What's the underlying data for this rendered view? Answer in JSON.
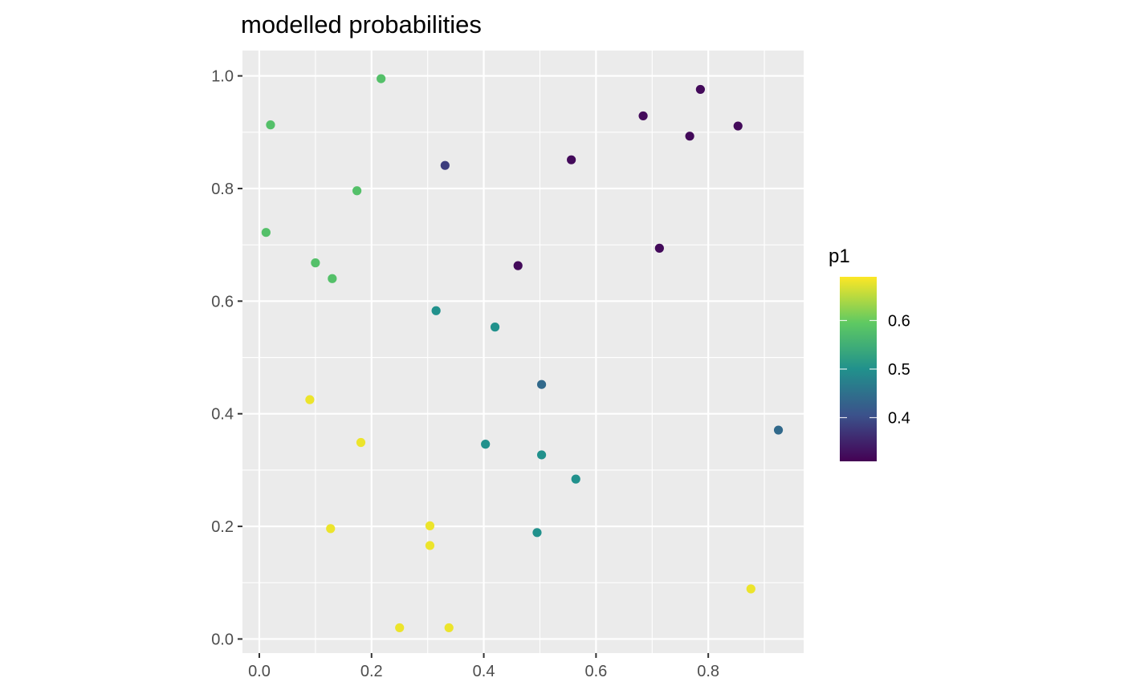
{
  "chart_data": {
    "type": "scatter",
    "title": "modelled probabilities",
    "xlabel": "",
    "ylabel": "",
    "xlim": [
      -0.03,
      0.97
    ],
    "ylim": [
      -0.025,
      1.045
    ],
    "x_ticks": [
      0.0,
      0.2,
      0.4,
      0.6,
      0.8
    ],
    "x_tick_labels": [
      "0.0",
      "0.2",
      "0.4",
      "0.6",
      "0.8"
    ],
    "y_ticks": [
      0.0,
      0.2,
      0.4,
      0.6,
      0.8,
      1.0
    ],
    "y_tick_labels": [
      "0.0",
      "0.2",
      "0.4",
      "0.6",
      "0.8",
      "1.0"
    ],
    "grid": true,
    "background": "#ebebeb",
    "legend": {
      "title": "p1",
      "placement": "right",
      "type": "colorbar",
      "range": [
        0.31,
        0.69
      ],
      "ticks": [
        0.4,
        0.5,
        0.6
      ],
      "tick_labels": [
        "0.4",
        "0.5",
        "0.6"
      ],
      "colormap": [
        "#440154",
        "#3b528b",
        "#21918c",
        "#5ec962",
        "#fde725"
      ]
    },
    "points": [
      {
        "x": 0.217,
        "y": 0.995,
        "p1": 0.58
      },
      {
        "x": 0.02,
        "y": 0.913,
        "p1": 0.58
      },
      {
        "x": 0.331,
        "y": 0.841,
        "p1": 0.38
      },
      {
        "x": 0.174,
        "y": 0.796,
        "p1": 0.58
      },
      {
        "x": 0.012,
        "y": 0.722,
        "p1": 0.58
      },
      {
        "x": 0.1,
        "y": 0.668,
        "p1": 0.58
      },
      {
        "x": 0.13,
        "y": 0.64,
        "p1": 0.58
      },
      {
        "x": 0.786,
        "y": 0.976,
        "p1": 0.32
      },
      {
        "x": 0.684,
        "y": 0.929,
        "p1": 0.32
      },
      {
        "x": 0.767,
        "y": 0.893,
        "p1": 0.32
      },
      {
        "x": 0.853,
        "y": 0.911,
        "p1": 0.32
      },
      {
        "x": 0.556,
        "y": 0.851,
        "p1": 0.32
      },
      {
        "x": 0.713,
        "y": 0.694,
        "p1": 0.32
      },
      {
        "x": 0.461,
        "y": 0.663,
        "p1": 0.32
      },
      {
        "x": 0.315,
        "y": 0.583,
        "p1": 0.5
      },
      {
        "x": 0.42,
        "y": 0.554,
        "p1": 0.5
      },
      {
        "x": 0.503,
        "y": 0.452,
        "p1": 0.44
      },
      {
        "x": 0.925,
        "y": 0.371,
        "p1": 0.44
      },
      {
        "x": 0.403,
        "y": 0.346,
        "p1": 0.5
      },
      {
        "x": 0.503,
        "y": 0.327,
        "p1": 0.5
      },
      {
        "x": 0.564,
        "y": 0.284,
        "p1": 0.5
      },
      {
        "x": 0.495,
        "y": 0.189,
        "p1": 0.5
      },
      {
        "x": 0.09,
        "y": 0.425,
        "p1": 0.68
      },
      {
        "x": 0.181,
        "y": 0.349,
        "p1": 0.68
      },
      {
        "x": 0.127,
        "y": 0.196,
        "p1": 0.68
      },
      {
        "x": 0.304,
        "y": 0.201,
        "p1": 0.68
      },
      {
        "x": 0.304,
        "y": 0.166,
        "p1": 0.68
      },
      {
        "x": 0.25,
        "y": 0.02,
        "p1": 0.68
      },
      {
        "x": 0.338,
        "y": 0.02,
        "p1": 0.68
      },
      {
        "x": 0.876,
        "y": 0.089,
        "p1": 0.68
      }
    ]
  }
}
